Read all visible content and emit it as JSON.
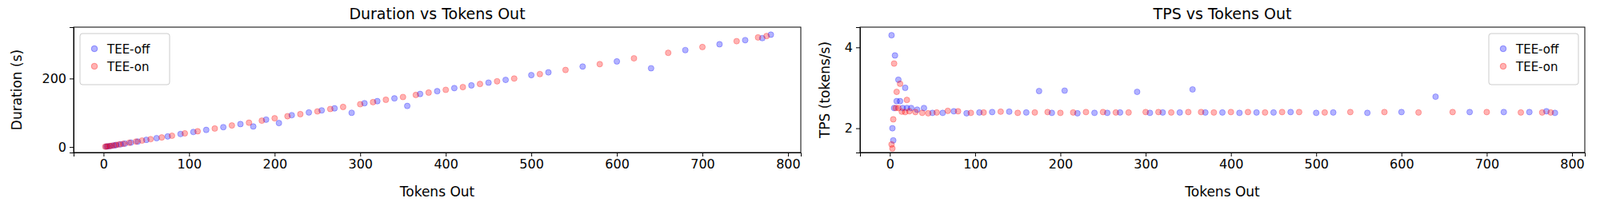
{
  "chart_data": [
    {
      "type": "scatter",
      "title": "Duration vs Tokens Out",
      "x_label": "Tokens Out",
      "y_label": "Duration (s)",
      "xlim": [
        -35,
        815
      ],
      "ylim": [
        -16,
        350
      ],
      "xticks": [
        0,
        100,
        200,
        300,
        400,
        500,
        600,
        700,
        800
      ],
      "yticks": [
        0,
        200
      ],
      "legend": "upper left",
      "series": [
        {
          "name": "TEE-off",
          "color": "#0000ff",
          "marker": "circle",
          "x": [
            3,
            5,
            8,
            12,
            15,
            20,
            25,
            32,
            40,
            50,
            62,
            75,
            90,
            105,
            120,
            140,
            160,
            175,
            190,
            205,
            220,
            240,
            255,
            270,
            290,
            305,
            320,
            340,
            355,
            370,
            390,
            410,
            430,
            450,
            470,
            500,
            520,
            560,
            600,
            640,
            680,
            720,
            750,
            770,
            780
          ],
          "values": [
            1.5,
            2,
            3,
            4.5,
            6,
            8,
            10,
            13,
            16,
            21,
            26,
            31,
            38,
            44,
            50,
            58,
            67,
            60,
            80,
            70,
            93,
            101,
            107,
            113,
            100,
            128,
            134,
            142,
            120,
            155,
            163,
            172,
            180,
            188,
            196,
            210,
            218,
            235,
            250,
            230,
            283,
            300,
            312,
            318,
            328
          ]
        },
        {
          "name": "TEE-on",
          "color": "#ff0000",
          "marker": "circle",
          "x": [
            2,
            4,
            7,
            10,
            14,
            18,
            23,
            30,
            38,
            45,
            55,
            68,
            80,
            95,
            110,
            130,
            150,
            170,
            185,
            200,
            215,
            230,
            250,
            265,
            280,
            300,
            315,
            330,
            350,
            365,
            380,
            400,
            420,
            440,
            460,
            480,
            510,
            540,
            580,
            620,
            660,
            700,
            740,
            765,
            775
          ],
          "values": [
            1,
            1.8,
            2.8,
            4,
            5.8,
            7.5,
            9.5,
            12.5,
            16,
            19,
            23,
            28,
            33,
            40,
            46,
            54,
            63,
            71,
            77,
            84,
            90,
            96,
            104,
            111,
            117,
            125,
            131,
            138,
            146,
            152,
            159,
            167,
            175,
            184,
            192,
            200,
            213,
            225,
            242,
            259,
            275,
            292,
            309,
            320,
            324
          ]
        }
      ]
    },
    {
      "type": "scatter",
      "title": "TPS vs Tokens Out",
      "x_label": "Tokens Out",
      "y_label": "TPS (tokens/s)",
      "xlim": [
        -35,
        815
      ],
      "ylim": [
        1.4,
        4.5
      ],
      "xticks": [
        0,
        100,
        200,
        300,
        400,
        500,
        600,
        700,
        800
      ],
      "yticks": [
        2,
        4
      ],
      "legend": "upper right",
      "series": [
        {
          "name": "TEE-off",
          "color": "#0000ff",
          "marker": "circle",
          "x": [
            2,
            4,
            6,
            10,
            18,
            3,
            5,
            8,
            12,
            15,
            20,
            25,
            32,
            40,
            50,
            62,
            75,
            90,
            105,
            120,
            140,
            160,
            175,
            190,
            205,
            220,
            240,
            255,
            270,
            290,
            305,
            320,
            340,
            355,
            370,
            390,
            410,
            430,
            450,
            470,
            500,
            520,
            560,
            600,
            640,
            680,
            720,
            750,
            770,
            780
          ],
          "values": [
            4.3,
            1.7,
            3.8,
            3.2,
            3.0,
            2.0,
            2.5,
            2.67,
            2.67,
            2.5,
            2.5,
            2.5,
            2.46,
            2.5,
            2.38,
            2.38,
            2.42,
            2.37,
            2.39,
            2.4,
            2.41,
            2.39,
            2.92,
            2.38,
            2.93,
            2.37,
            2.38,
            2.38,
            2.39,
            2.9,
            2.38,
            2.39,
            2.39,
            2.96,
            2.39,
            2.39,
            2.38,
            2.39,
            2.39,
            2.4,
            2.38,
            2.39,
            2.38,
            2.4,
            2.78,
            2.4,
            2.4,
            2.4,
            2.42,
            2.38
          ]
        },
        {
          "name": "TEE-on",
          "color": "#ff0000",
          "marker": "circle",
          "x": [
            3,
            5,
            8,
            12,
            20,
            2,
            4,
            7,
            10,
            14,
            18,
            23,
            30,
            38,
            45,
            55,
            68,
            80,
            95,
            110,
            130,
            150,
            170,
            185,
            200,
            215,
            230,
            250,
            265,
            280,
            300,
            315,
            330,
            350,
            365,
            380,
            400,
            420,
            440,
            460,
            480,
            510,
            540,
            580,
            620,
            660,
            700,
            740,
            765,
            775
          ],
          "values": [
            1.5,
            3.6,
            2.9,
            3.1,
            2.7,
            1.6,
            2.22,
            2.5,
            2.5,
            2.41,
            2.4,
            2.42,
            2.4,
            2.38,
            2.37,
            2.39,
            2.43,
            2.42,
            2.38,
            2.39,
            2.41,
            2.38,
            2.39,
            2.4,
            2.38,
            2.39,
            2.4,
            2.4,
            2.39,
            2.39,
            2.4,
            2.4,
            2.39,
            2.4,
            2.4,
            2.39,
            2.4,
            2.4,
            2.39,
            2.4,
            2.4,
            2.39,
            2.4,
            2.4,
            2.39,
            2.4,
            2.4,
            2.39,
            2.39,
            2.39
          ]
        }
      ]
    }
  ]
}
